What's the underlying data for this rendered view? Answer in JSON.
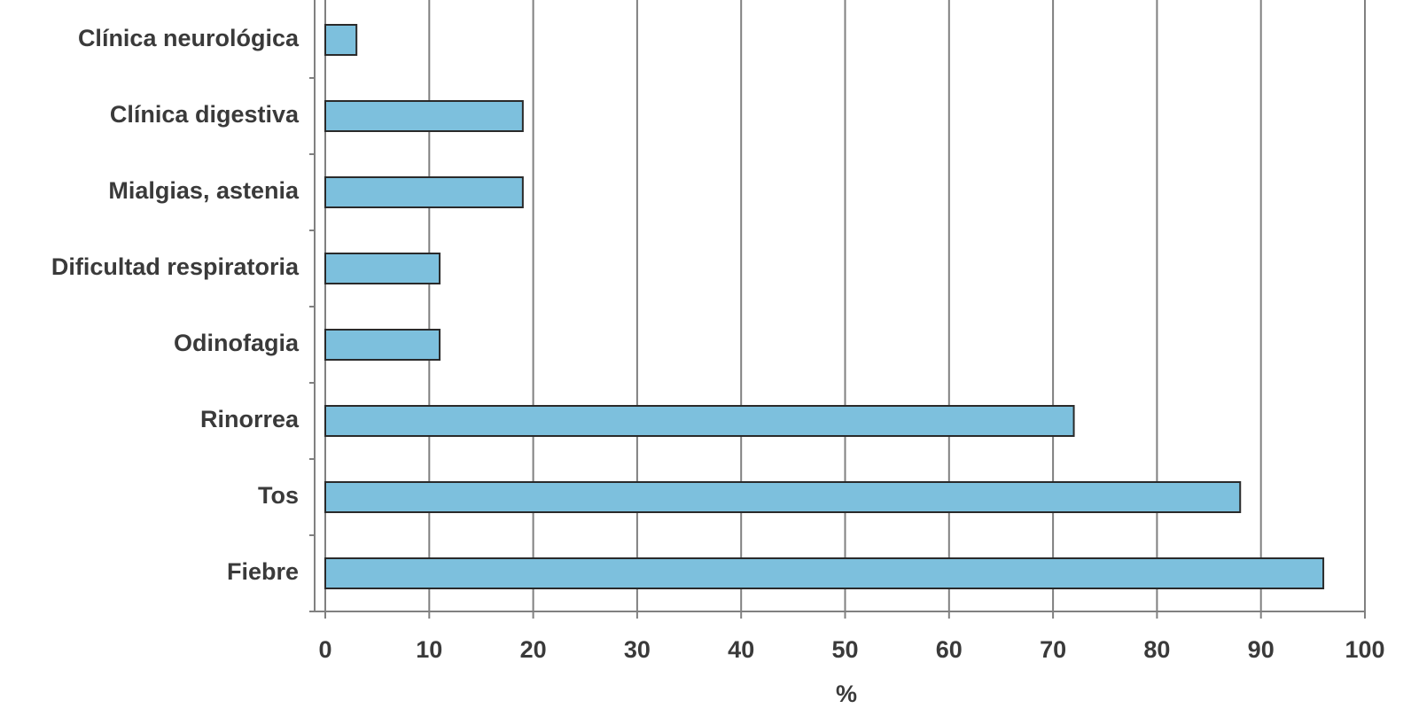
{
  "chart_data": {
    "type": "bar",
    "orientation": "horizontal",
    "categories": [
      "Clínica neurológica",
      "Clínica digestiva",
      "Mialgias, astenia",
      "Dificultad respiratoria",
      "Odinofagia",
      "Rinorrea",
      "Tos",
      "Fiebre"
    ],
    "values": [
      3,
      19,
      19,
      11,
      11,
      72,
      88,
      96
    ],
    "color": "#7dc0dd",
    "x_label": "%",
    "xlim": [
      0,
      100
    ],
    "xticks": [
      0,
      10,
      20,
      30,
      40,
      50,
      60,
      70,
      80,
      90,
      100
    ],
    "grid": true
  }
}
